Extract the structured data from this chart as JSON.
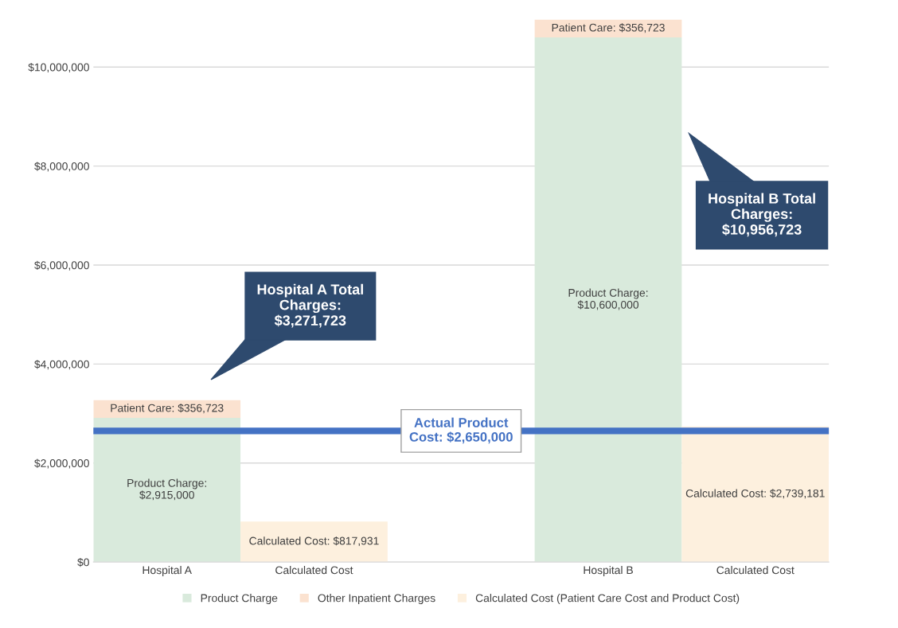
{
  "chart_data": {
    "type": "bar",
    "stacked": true,
    "categories": [
      "Hospital A",
      "Calculated Cost",
      null,
      "Hospital B",
      "Calculated Cost"
    ],
    "series": [
      {
        "name": "Product Charge",
        "color": "#d9eadc",
        "values": [
          2915000,
          null,
          null,
          10600000,
          null
        ],
        "value_labels": [
          "Product Charge:\n$2,915,000",
          null,
          null,
          "Product Charge:\n$10,600,000",
          null
        ]
      },
      {
        "name": "Other Inpatient Charges",
        "color": "#fbe2d0",
        "values": [
          356723,
          null,
          null,
          356723,
          null
        ],
        "value_labels": [
          "Patient Care: $356,723",
          null,
          null,
          "Patient Care: $356,723",
          null
        ]
      },
      {
        "name": "Calculated Cost (Patient Care Cost and Product Cost)",
        "color": "#fdf0de",
        "values": [
          null,
          817931,
          null,
          null,
          2739181
        ],
        "value_labels": [
          null,
          "Calculated Cost: $817,931",
          null,
          null,
          "Calculated Cost: $2,739,181"
        ]
      }
    ],
    "ylim": [
      0,
      11000000
    ],
    "yticks": [
      {
        "value": 0,
        "label": "$0"
      },
      {
        "value": 2000000,
        "label": "$2,000,000"
      },
      {
        "value": 4000000,
        "label": "$4,000,000"
      },
      {
        "value": 6000000,
        "label": "$6,000,000"
      },
      {
        "value": 8000000,
        "label": "$8,000,000"
      },
      {
        "value": 10000000,
        "label": "$10,000,000"
      }
    ],
    "ref_lines": [
      {
        "axis": "y",
        "value": 2650000,
        "label": "Actual Product\nCost: $2,650,000",
        "color": "#4472c4"
      }
    ],
    "annotations": [
      "Hospital A Total\nCharges:\n$3,271,723",
      "Hospital B Total\nCharges:\n$10,956,723"
    ],
    "grid": "y",
    "legend": "bottom"
  }
}
